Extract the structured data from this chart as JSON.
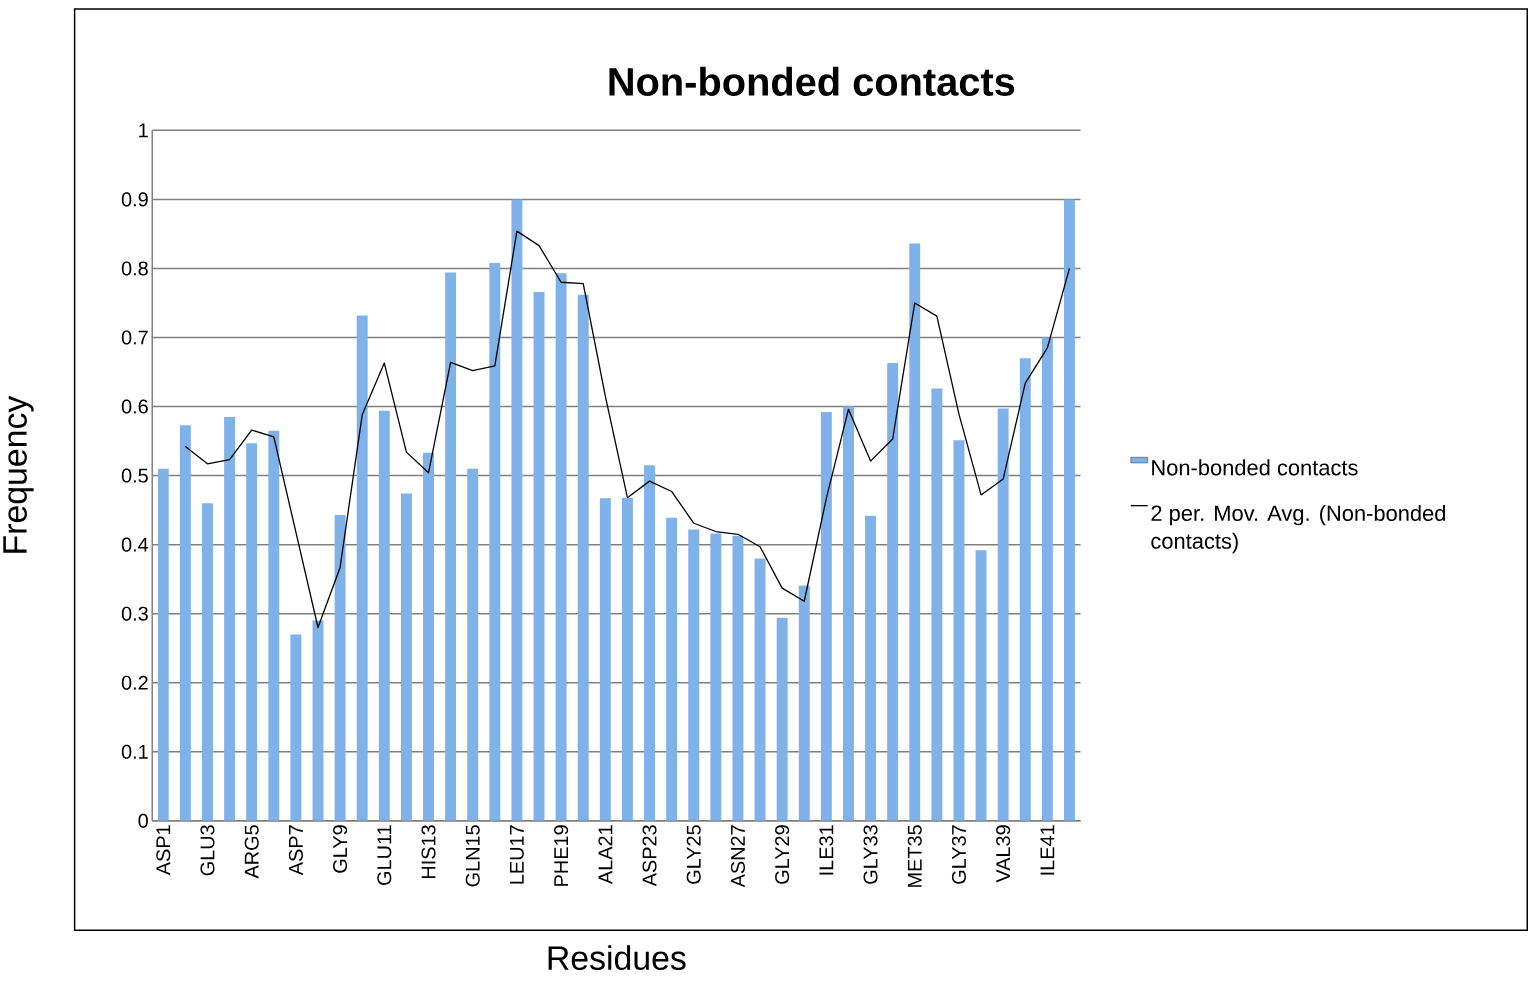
{
  "chart_data": {
    "type": "bar",
    "title": "Non-bonded contacts",
    "xlabel": "Residues",
    "ylabel": "Frequency",
    "categories": [
      "ASP1",
      null,
      "GLU3",
      null,
      "ARG5",
      null,
      "ASP7",
      null,
      "GLY9",
      null,
      "GLU11",
      null,
      "HIS13",
      null,
      "GLN15",
      null,
      "LEU17",
      null,
      "PHE19",
      null,
      "ALA21",
      null,
      "ASP23",
      null,
      "GLY25",
      null,
      "ASN27",
      null,
      "GLY29",
      null,
      "ILE31",
      null,
      "GLY33",
      null,
      "MET35",
      null,
      "GLY37",
      null,
      "VAL39",
      null,
      "ILE41",
      null
    ],
    "series": [
      {
        "name": "Non-bonded contacts",
        "color": "#7fb2e8",
        "values": [
          0.51,
          0.573,
          0.46,
          0.585,
          0.547,
          0.565,
          0.27,
          0.29,
          0.443,
          0.732,
          0.594,
          0.474,
          0.533,
          0.794,
          0.51,
          0.808,
          0.9,
          0.766,
          0.793,
          0.762,
          0.467,
          0.468,
          0.515,
          0.439,
          0.422,
          0.416,
          0.413,
          0.38,
          0.294,
          0.341,
          0.592,
          0.6,
          0.442,
          0.663,
          0.836,
          0.626,
          0.551,
          0.392,
          0.597,
          0.67,
          0.7,
          0.9
        ]
      },
      {
        "name": "2 per. Mov. Avg. (Non-bonded contacts)",
        "type": "line",
        "color": "#000000",
        "values": [
          null,
          0.542,
          0.517,
          0.523,
          0.566,
          0.556,
          0.418,
          0.28,
          0.367,
          0.588,
          0.663,
          0.534,
          0.504,
          0.664,
          0.652,
          0.659,
          0.854,
          0.833,
          0.78,
          0.778,
          0.615,
          0.468,
          0.492,
          0.477,
          0.431,
          0.419,
          0.415,
          0.397,
          0.337,
          0.318,
          0.467,
          0.596,
          0.521,
          0.553,
          0.75,
          0.731,
          0.589,
          0.472,
          0.495,
          0.634,
          0.685,
          0.8
        ]
      }
    ],
    "ylim": [
      0,
      1
    ],
    "yticks": [
      0,
      0.1,
      0.2,
      0.3,
      0.4,
      0.5,
      0.6,
      0.7,
      0.8,
      0.9,
      1
    ],
    "grid": "y",
    "legend": "right"
  }
}
